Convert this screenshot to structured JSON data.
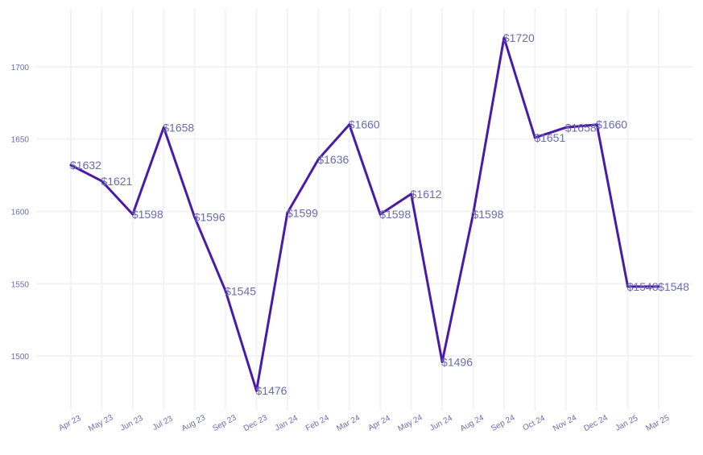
{
  "chart_data": {
    "type": "line",
    "title": "",
    "xlabel": "",
    "ylabel": "",
    "categories": [
      "Apr 23",
      "May 23",
      "Jun 23",
      "Jul 23",
      "Aug 23",
      "Sep 23",
      "Dec 23",
      "Jan 24",
      "Feb 24",
      "Mar 24",
      "Apr 24",
      "May 24",
      "Jun 24",
      "Aug 24",
      "Sep 24",
      "Oct 24",
      "Nov 24",
      "Dec 24",
      "Jan 25",
      "Mar 25"
    ],
    "series": [
      {
        "values": [
          1632,
          1621,
          1598,
          1658,
          1596,
          1545,
          1476,
          1599,
          1636,
          1660,
          1598,
          1612,
          1496,
          1598,
          1720,
          1651,
          1658,
          1660,
          1548,
          1548
        ],
        "labels": [
          "$1632",
          "$1621",
          "$1598",
          "$1658",
          "$1596",
          "$1545",
          "$1476",
          "$1599",
          "$1636",
          "$1660",
          "$1598",
          "$1612",
          "$1496",
          "$1598",
          "$1720",
          "$1651",
          "$1658",
          "$1660",
          "$1548",
          "$1548"
        ]
      }
    ],
    "y_ticks": [
      1500,
      1550,
      1600,
      1650,
      1700
    ],
    "ylim": [
      1465,
      1735
    ],
    "grid": true,
    "line_color": "#4a1aa8",
    "label_color": "#6b6bb0",
    "grid_color": "#f3f3f6"
  }
}
